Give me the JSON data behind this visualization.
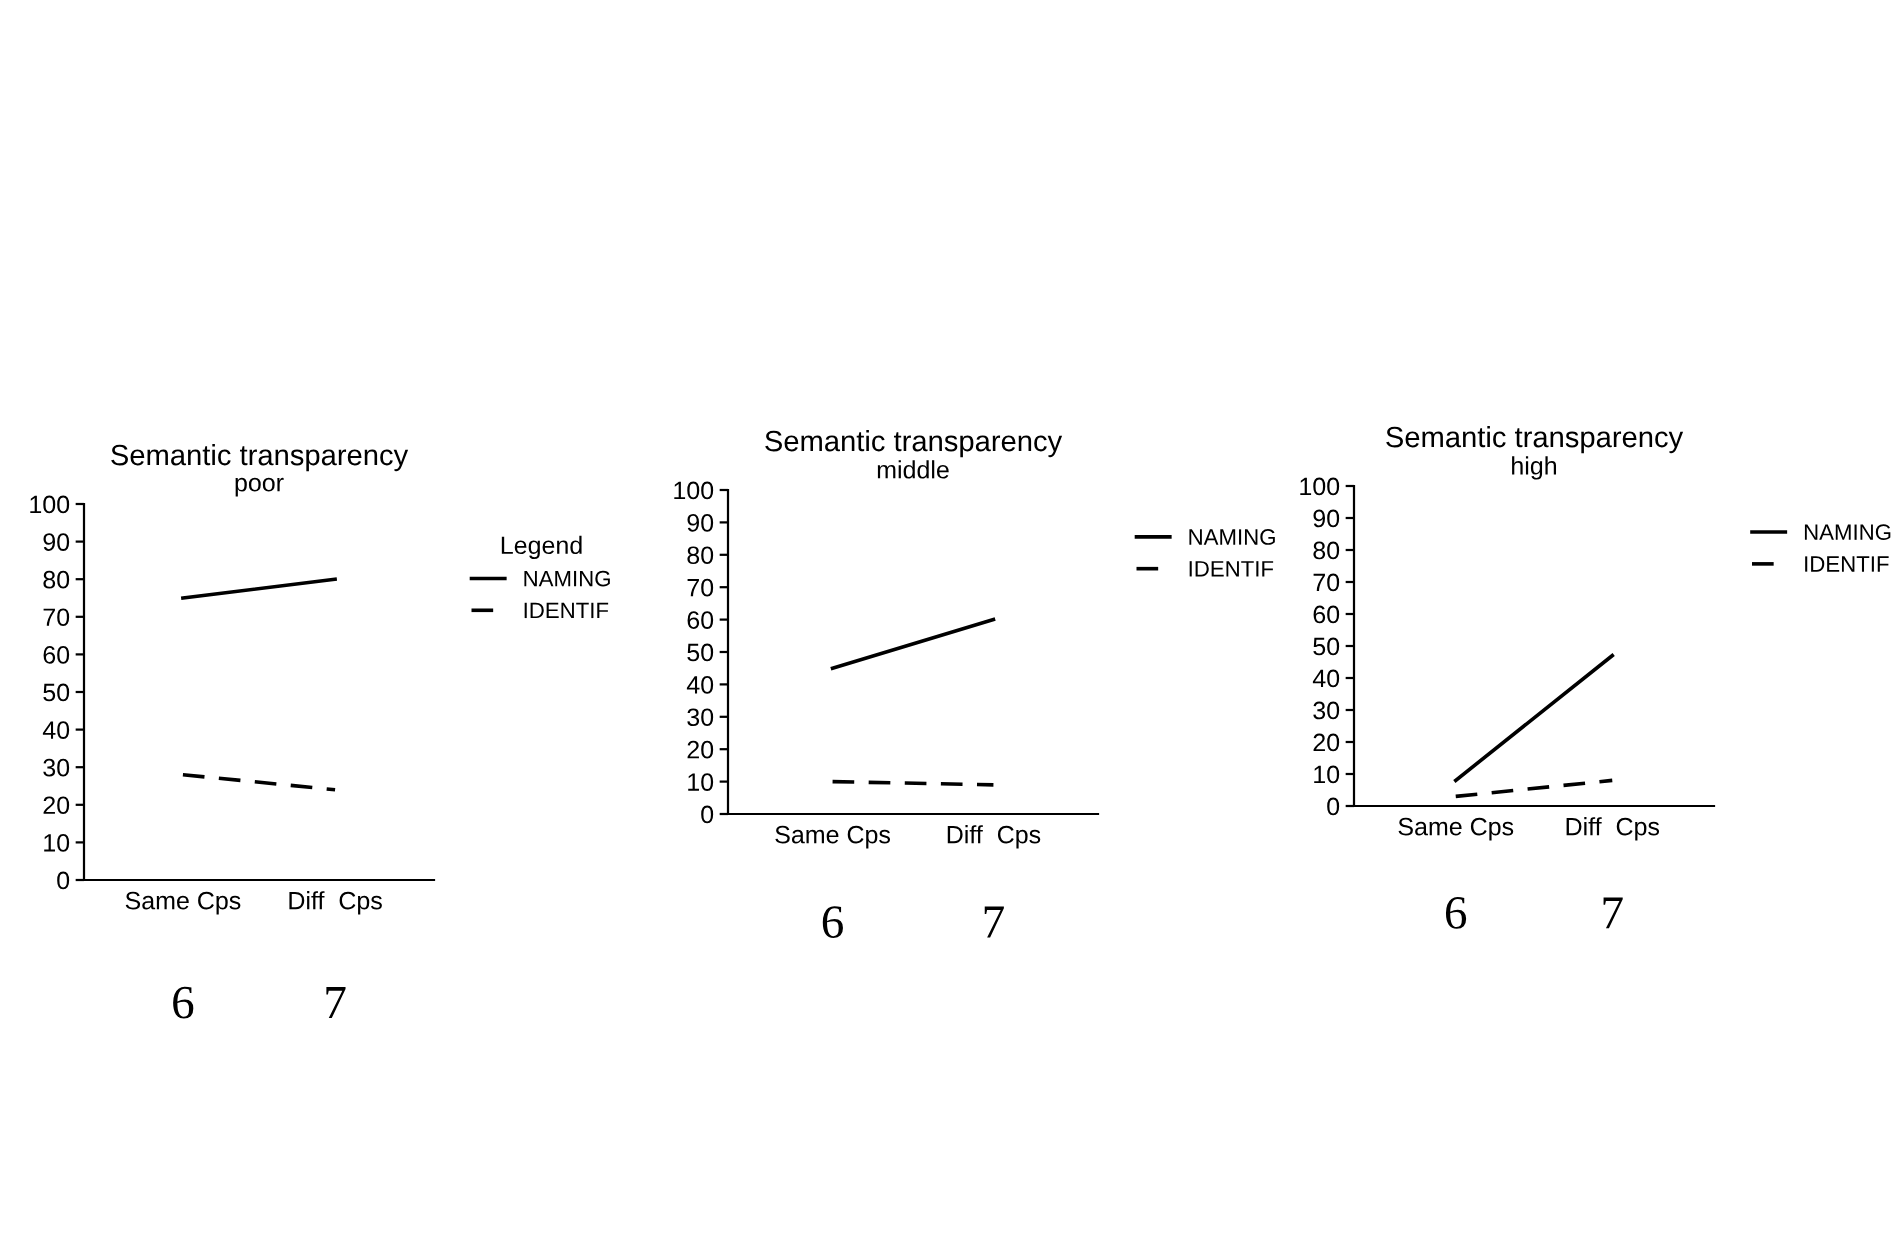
{
  "chart_data": [
    {
      "type": "line",
      "title": "Semantic transparency",
      "subtitle": "poor",
      "categories": [
        "Same Cps",
        "Diff  Cps"
      ],
      "legend_title": "Legend",
      "legend": "right",
      "ylim": [
        0,
        100
      ],
      "yticks": [
        0,
        10,
        20,
        30,
        40,
        50,
        60,
        70,
        80,
        90,
        100
      ],
      "grid": false,
      "annotations": [
        "6",
        "7"
      ],
      "series": [
        {
          "name": "NAMING",
          "color": "#000000",
          "line_style": "solid",
          "values": [
            75,
            80
          ]
        },
        {
          "name": "IDENTIF",
          "color": "#000000",
          "line_style": "dashed",
          "values": [
            28,
            24
          ]
        }
      ]
    },
    {
      "type": "line",
      "title": "Semantic transparency",
      "subtitle": "middle",
      "categories": [
        "Same Cps",
        "Diff  Cps"
      ],
      "legend": "right",
      "ylim": [
        0,
        100
      ],
      "yticks": [
        0,
        10,
        20,
        30,
        40,
        50,
        60,
        70,
        80,
        90,
        100
      ],
      "grid": false,
      "annotations": [
        "6",
        "7"
      ],
      "series": [
        {
          "name": "NAMING",
          "color": "#000000",
          "line_style": "solid",
          "values": [
            45,
            60
          ]
        },
        {
          "name": "IDENTIF",
          "color": "#000000",
          "line_style": "dashed",
          "values": [
            10,
            9
          ]
        }
      ]
    },
    {
      "type": "line",
      "title": "Semantic transparency",
      "subtitle": "high",
      "categories": [
        "Same Cps",
        "Diff  Cps"
      ],
      "legend": "right",
      "ylim": [
        0,
        100
      ],
      "yticks": [
        0,
        10,
        20,
        30,
        40,
        50,
        60,
        70,
        80,
        90,
        100
      ],
      "grid": false,
      "annotations": [
        "6",
        "7"
      ],
      "series": [
        {
          "name": "NAMING",
          "color": "#000000",
          "line_style": "solid",
          "values": [
            8,
            47
          ]
        },
        {
          "name": "IDENTIF",
          "color": "#000000",
          "line_style": "dashed",
          "values": [
            3,
            8
          ]
        }
      ]
    }
  ]
}
